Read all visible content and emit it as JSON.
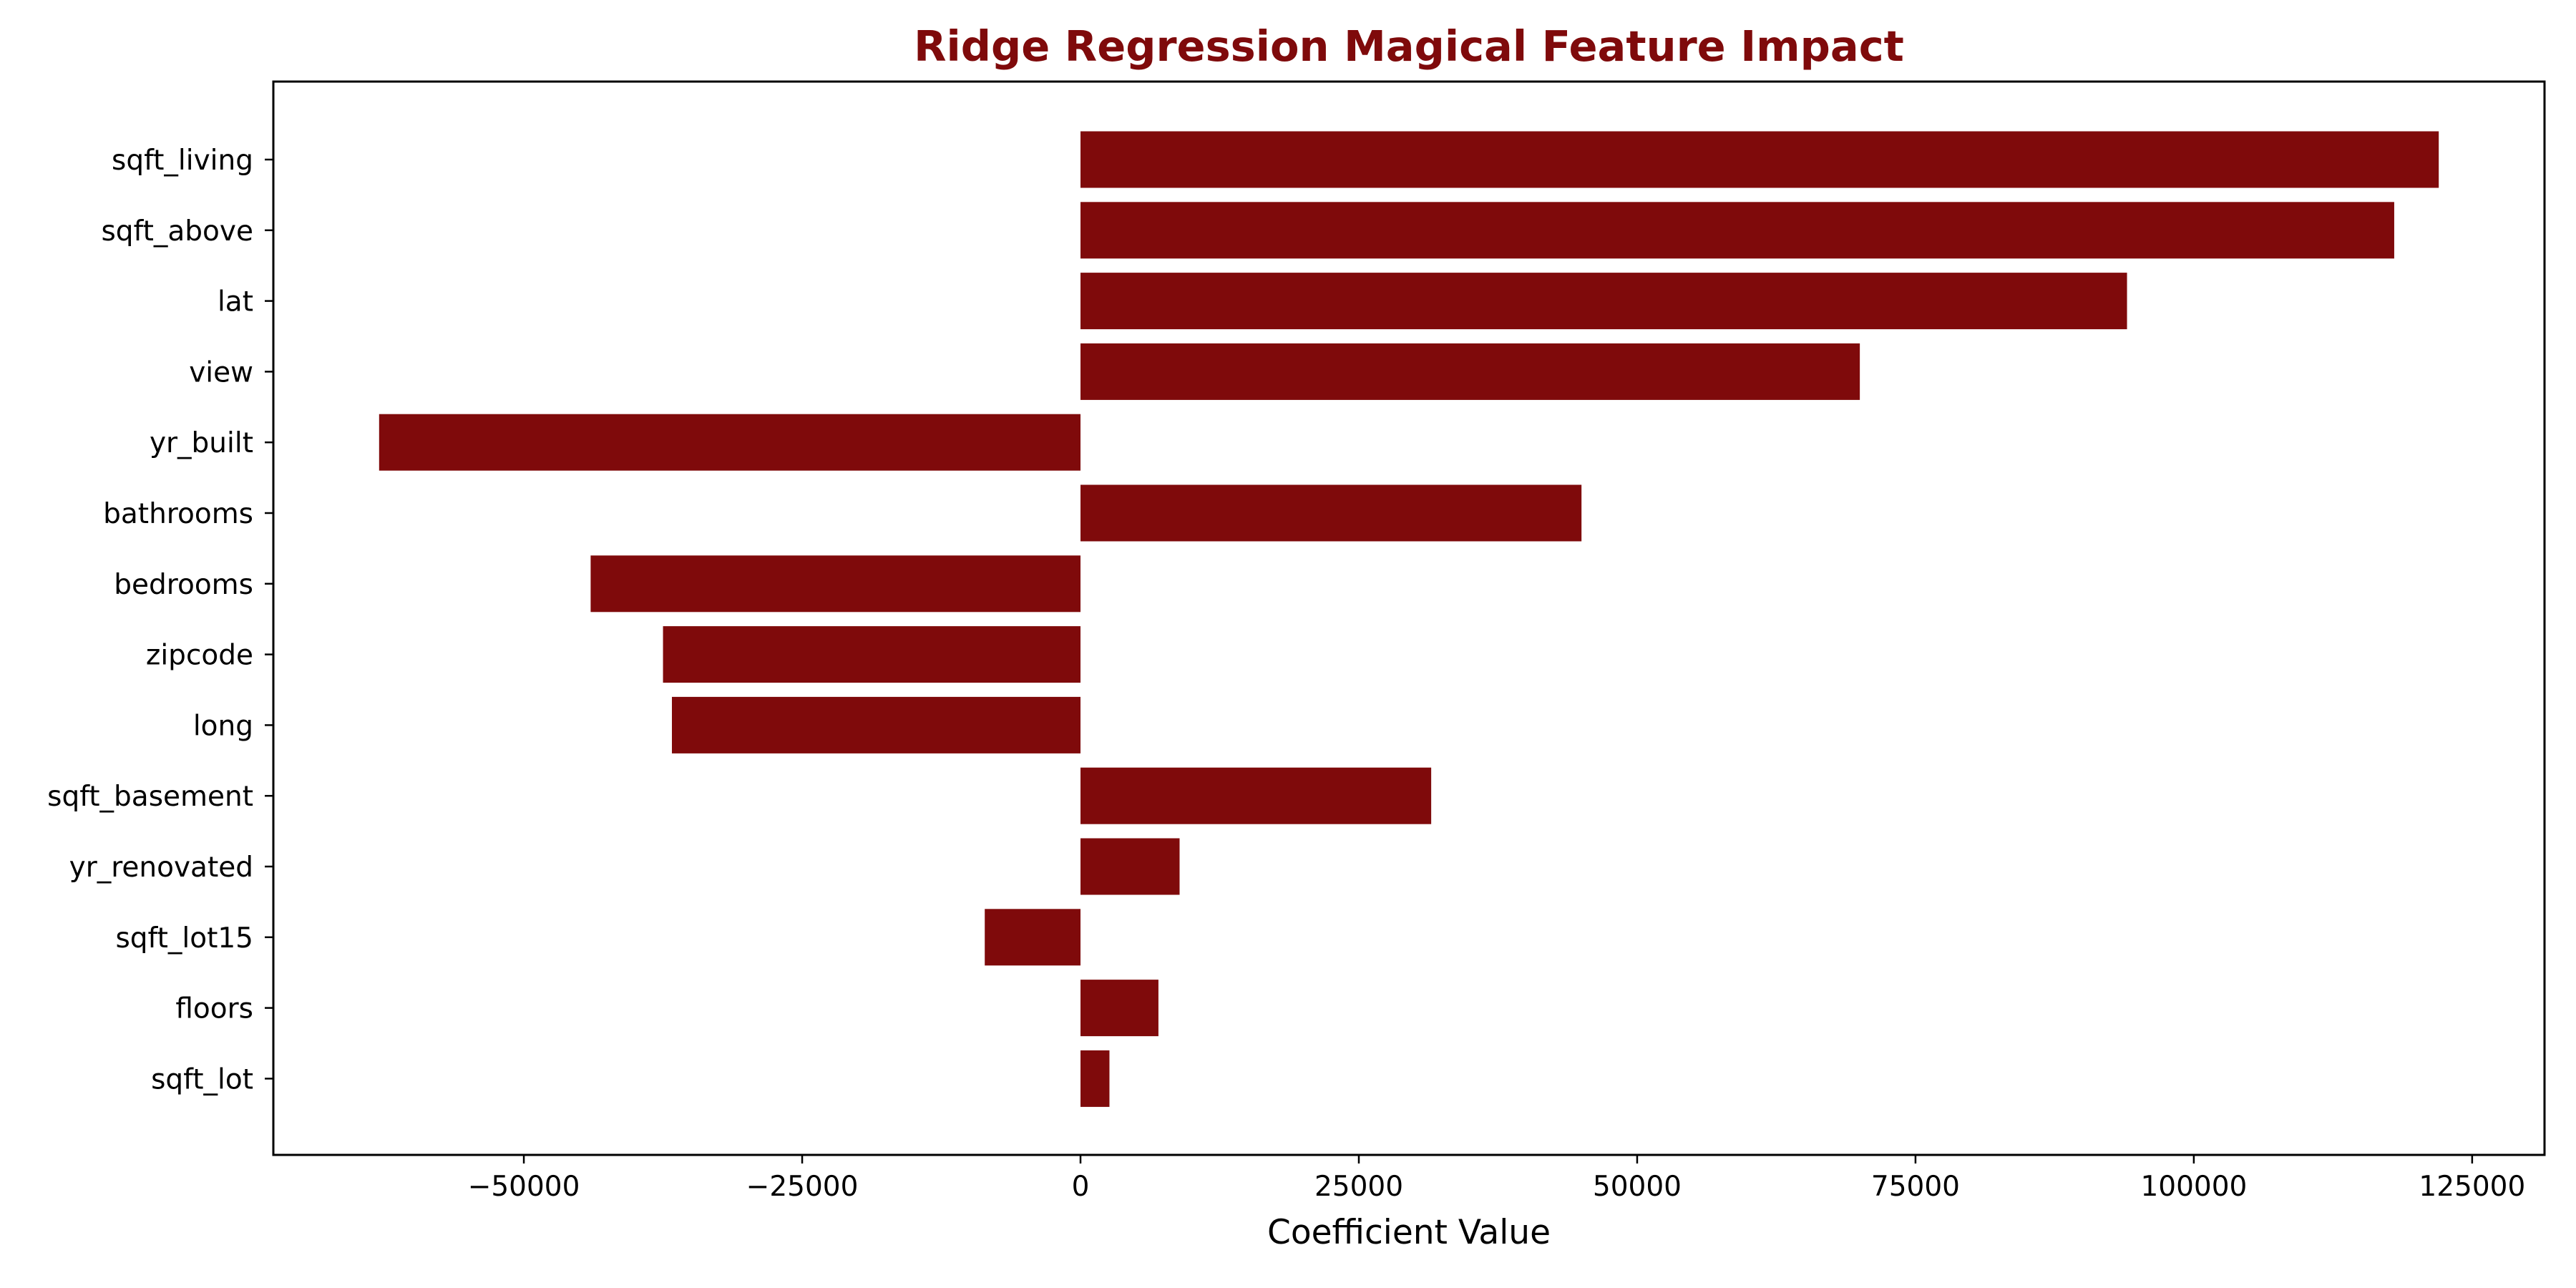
{
  "colors": {
    "bar": "#7f0a0b",
    "title": "#7f0a0b",
    "axis": "#000000",
    "background": "#ffffff"
  },
  "chart_data": {
    "type": "bar",
    "orientation": "horizontal",
    "title": "Ridge Regression Magical Feature Impact",
    "xlabel": "Coefficient Value",
    "ylabel": "",
    "xlim": [
      -72500,
      131500
    ],
    "xticks": [
      -50000,
      -25000,
      0,
      25000,
      50000,
      75000,
      100000,
      125000
    ],
    "xtick_labels": [
      "−50000",
      "−25000",
      "0",
      "25000",
      "50000",
      "75000",
      "100000",
      "125000"
    ],
    "grid": false,
    "legend": "none",
    "categories": [
      "sqft_living",
      "sqft_above",
      "lat",
      "view",
      "yr_built",
      "bathrooms",
      "bedrooms",
      "zipcode",
      "long",
      "sqft_basement",
      "yr_renovated",
      "sqft_lot15",
      "floors",
      "sqft_lot"
    ],
    "values": [
      122000,
      118000,
      94000,
      70000,
      -63000,
      45000,
      -44000,
      -37500,
      -36700,
      31500,
      8900,
      -8600,
      7000,
      2600
    ]
  }
}
